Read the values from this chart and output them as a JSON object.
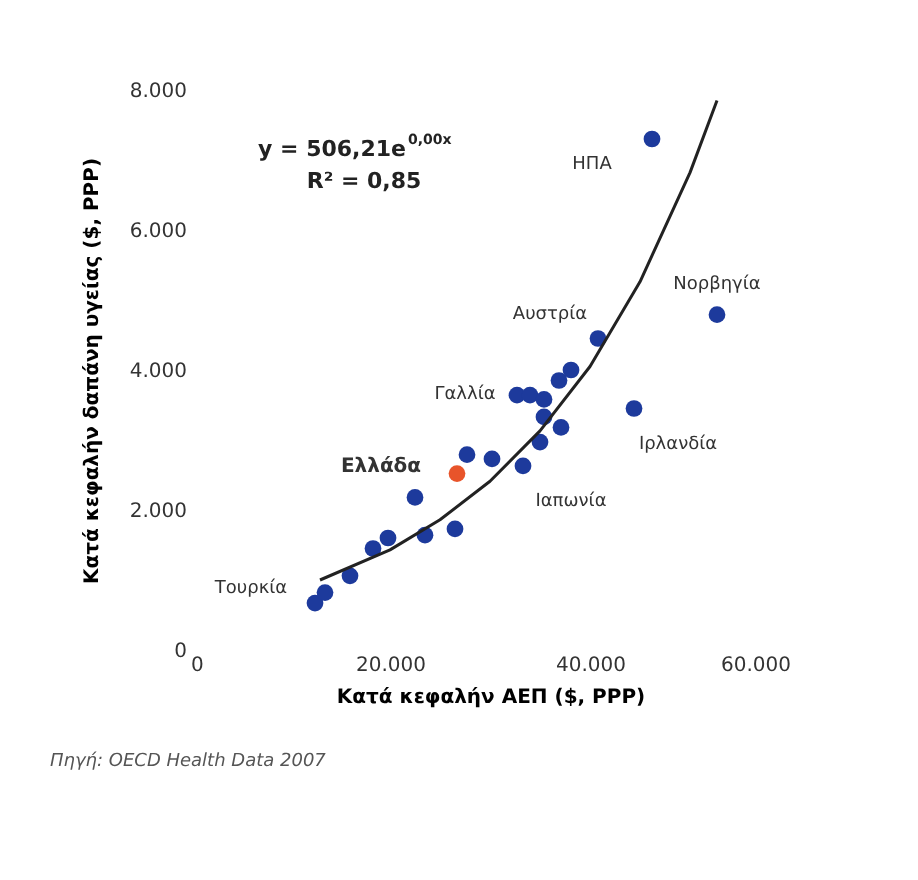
{
  "chart_data": {
    "type": "scatter",
    "xlabel": "Κατά κεφαλήν ΑΕΠ ($, PPP)",
    "ylabel": "Κατά κεφαλήν δαπάνη υγείας ($, PPP)",
    "xlim": [
      0,
      60000
    ],
    "ylim": [
      0,
      8000
    ],
    "xticks": [
      0,
      {
        "value": 20000,
        "label": "20.000"
      },
      {
        "value": 40000,
        "label": "40.000"
      },
      {
        "value": 60000,
        "label": "60.000"
      }
    ],
    "yticks": [
      0,
      {
        "value": 2000,
        "label": "2.000"
      },
      {
        "value": 4000,
        "label": "4.000"
      },
      {
        "value": 6000,
        "label": "6.000"
      },
      {
        "value": 8000,
        "label": "8.000"
      }
    ],
    "grid": false,
    "marker": "circle",
    "series": [
      {
        "color": "#1d3a9c",
        "x": [
          12500,
          13500,
          16000,
          18300,
          19800,
          23500,
          26500,
          22500,
          27700,
          30200,
          33300,
          35000,
          37100,
          44400,
          46200,
          40800,
          32700,
          34000,
          35400,
          36900,
          38100,
          35400,
          52700
        ],
        "values": [
          670,
          820,
          1060,
          1450,
          1600,
          1640,
          1730,
          2180,
          2790,
          2730,
          2630,
          2970,
          3180,
          3450,
          7300,
          4450,
          3640,
          3640,
          3580,
          3850,
          4000,
          3330,
          4790
        ]
      },
      {
        "color": "#e8542a",
        "x": [
          26700
        ],
        "values": [
          2520
        ]
      },
      {
        "type": "line",
        "color": "#222222",
        "line_style": "solid",
        "marker": "none",
        "x": [
          13000,
          20000,
          25000,
          30000,
          35000,
          40000,
          45000,
          50000,
          52700
        ],
        "values": [
          1000,
          1430,
          1860,
          2410,
          3130,
          4050,
          5260,
          6820,
          7850
        ]
      }
    ],
    "annotations": [
      {
        "text": "ΗΠΑ",
        "x": 46200,
        "y": 7300
      },
      {
        "text": "Νορβηγία",
        "x": 52700,
        "y": 4790
      },
      {
        "text": "Αυστρία",
        "x": 40800,
        "y": 4450
      },
      {
        "text": "Γαλλία",
        "x": 32700,
        "y": 3640
      },
      {
        "text": "Ιρλανδία",
        "x": 44400,
        "y": 3450
      },
      {
        "text": "Ιαπωνία",
        "x": 33300,
        "y": 2630
      },
      {
        "text": "Ελλάδα",
        "x": 26700,
        "y": 2520
      },
      {
        "text": "Τουρκία",
        "x": 12500,
        "y": 670
      },
      "y = 506,21e$^{0,00x}$",
      "R² = 0,85",
      "Πηγή: OECD Health Data 2007"
    ]
  }
}
